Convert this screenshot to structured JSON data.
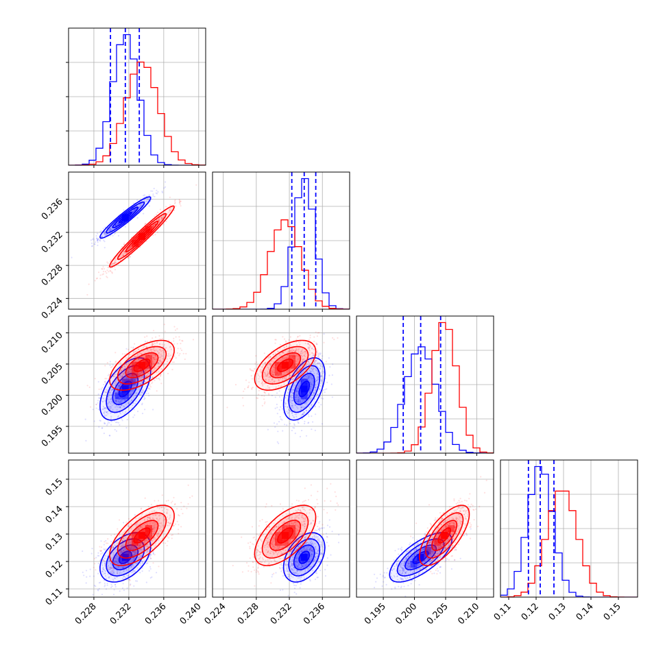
{
  "chart_data": {
    "type": "corner",
    "title": "",
    "grid": true,
    "series": [
      {
        "color": "#0000ff",
        "mean": [
          0.2316,
          0.2338,
          0.201,
          0.1215
        ],
        "sd": [
          0.00145,
          0.00125,
          0.0025,
          0.0045
        ],
        "corr": [
          [
            1,
            0.95,
            0.55,
            0.45
          ],
          [
            0.95,
            1,
            0.5,
            0.4
          ],
          [
            0.55,
            0.5,
            1,
            0.7
          ],
          [
            0.45,
            0.4,
            0.7,
            1
          ]
        ]
      },
      {
        "color": "#ff0000",
        "mean": [
          0.2335,
          0.2315,
          0.2048,
          0.1295
        ],
        "sd": [
          0.00185,
          0.00185,
          0.002,
          0.0055
        ],
        "corr": [
          [
            1,
            0.97,
            0.6,
            0.65
          ],
          [
            0.97,
            1,
            0.55,
            0.6
          ],
          [
            0.6,
            0.55,
            1,
            0.7
          ],
          [
            0.65,
            0.6,
            0.7,
            1
          ]
        ]
      }
    ],
    "quantiles": [
      [
        0.2299,
        0.2316,
        0.2332
      ],
      [
        0.2323,
        0.2338,
        0.2352
      ],
      [
        0.1982,
        0.201,
        0.2042
      ],
      [
        0.1172,
        0.1215,
        0.1265
      ]
    ],
    "params": [
      {
        "range": [
          0.2251,
          0.2408
        ],
        "ticks": [
          0.228,
          0.232,
          0.236,
          0.24
        ],
        "tick_labels": [
          "0.228",
          "0.232",
          "0.236",
          "0.240"
        ]
      },
      {
        "range": [
          0.2227,
          0.2393
        ],
        "ticks": [
          0.224,
          0.228,
          0.232,
          0.236
        ],
        "tick_labels": [
          "0.224",
          "0.228",
          "0.232",
          "0.236"
        ]
      },
      {
        "range": [
          0.1907,
          0.2127
        ],
        "ticks": [
          0.195,
          0.2,
          0.205,
          0.21
        ],
        "tick_labels": [
          "0.195",
          "0.200",
          "0.205",
          "0.210"
        ]
      },
      {
        "range": [
          0.107,
          0.157
        ],
        "ticks": [
          0.11,
          0.12,
          0.13,
          0.14,
          0.15
        ],
        "tick_labels": [
          "0.11",
          "0.12",
          "0.13",
          "0.14",
          "0.15"
        ]
      }
    ]
  }
}
